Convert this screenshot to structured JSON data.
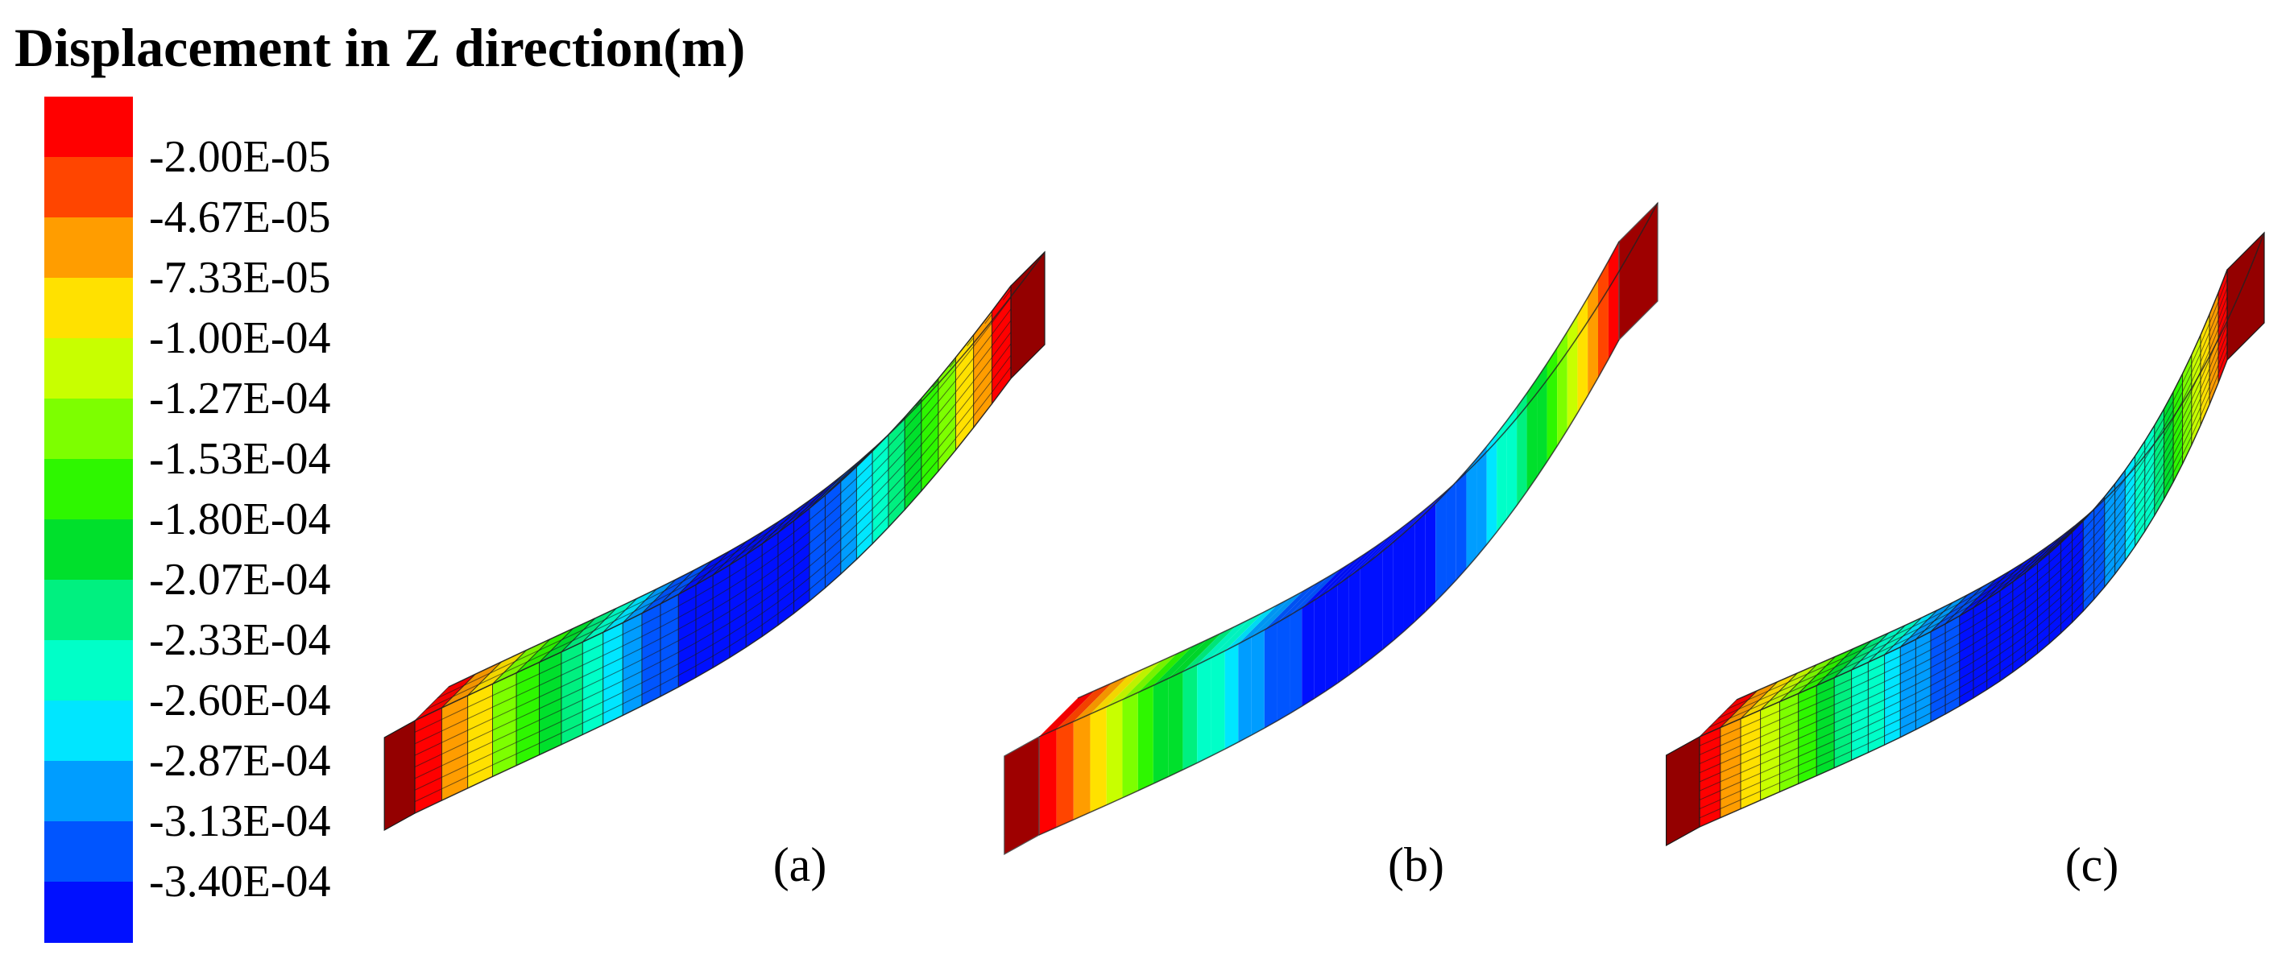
{
  "title": "Displacement in Z direction(m)",
  "legend": {
    "colors": [
      "#ff0000",
      "#ff4500",
      "#ff9d00",
      "#ffe100",
      "#c8ff00",
      "#7dff00",
      "#2ef700",
      "#00e02c",
      "#00f080",
      "#00ffc8",
      "#00e6ff",
      "#009dff",
      "#0055ff",
      "#0010ff"
    ],
    "labels": [
      "-2.00E-05",
      "-4.67E-05",
      "-7.33E-05",
      "-1.00E-04",
      "-1.27E-04",
      "-1.53E-04",
      "-1.80E-04",
      "-2.07E-04",
      "-2.33E-04",
      "-2.60E-04",
      "-2.87E-04",
      "-3.13E-04",
      "-3.40E-04"
    ]
  },
  "panels": [
    {
      "label": "(a)",
      "mesh": true,
      "mesh_density": "medium"
    },
    {
      "label": "(b)",
      "mesh": false
    },
    {
      "label": "(c)",
      "mesh": true,
      "mesh_density": "fine"
    }
  ]
}
